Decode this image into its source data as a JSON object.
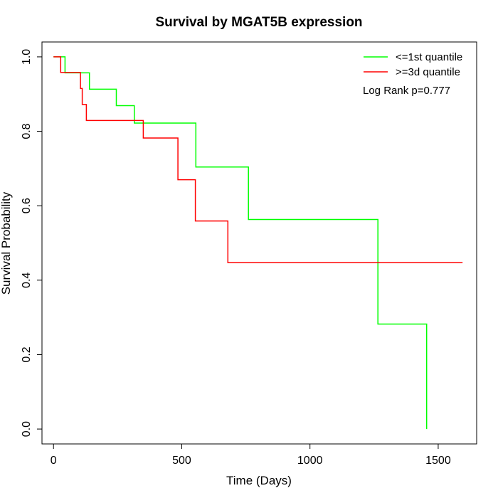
{
  "chart_data": {
    "type": "line",
    "title": "Survival by MGAT5B expression",
    "xlabel": "Time (Days)",
    "ylabel": "Survival Probability",
    "xlim": [
      -45,
      1650
    ],
    "ylim": [
      -0.04,
      1.04
    ],
    "xticks": [
      0,
      500,
      1000,
      1500
    ],
    "xtick_labels": [
      "0",
      "500",
      "1000",
      "1500"
    ],
    "yticks": [
      0.0,
      0.2,
      0.4,
      0.6,
      0.8,
      1.0
    ],
    "ytick_labels": [
      "0.0",
      "0.2",
      "0.4",
      "0.6",
      "0.8",
      "1.0"
    ],
    "grid": false,
    "legend_position": "top-right",
    "annotation": "Log Rank p=0.777",
    "series": [
      {
        "name": "<=1st quantile",
        "color": "#00ff00",
        "step": true,
        "x": [
          0,
          45,
          45,
          140,
          140,
          245,
          245,
          315,
          315,
          555,
          555,
          760,
          760,
          1265,
          1265,
          1455,
          1455
        ],
        "y": [
          1.0,
          1.0,
          0.957,
          0.957,
          0.913,
          0.913,
          0.869,
          0.869,
          0.822,
          0.822,
          0.704,
          0.704,
          0.563,
          0.563,
          0.282,
          0.282,
          0.0
        ]
      },
      {
        "name": ">=3d quantile",
        "color": "#ff0000",
        "step": true,
        "x": [
          0,
          28,
          28,
          105,
          105,
          112,
          112,
          128,
          128,
          350,
          350,
          485,
          485,
          553,
          553,
          680,
          680,
          1595
        ],
        "y": [
          1.0,
          1.0,
          0.958,
          0.958,
          0.915,
          0.915,
          0.872,
          0.872,
          0.829,
          0.829,
          0.782,
          0.782,
          0.67,
          0.67,
          0.559,
          0.559,
          0.447,
          0.447
        ]
      }
    ]
  }
}
